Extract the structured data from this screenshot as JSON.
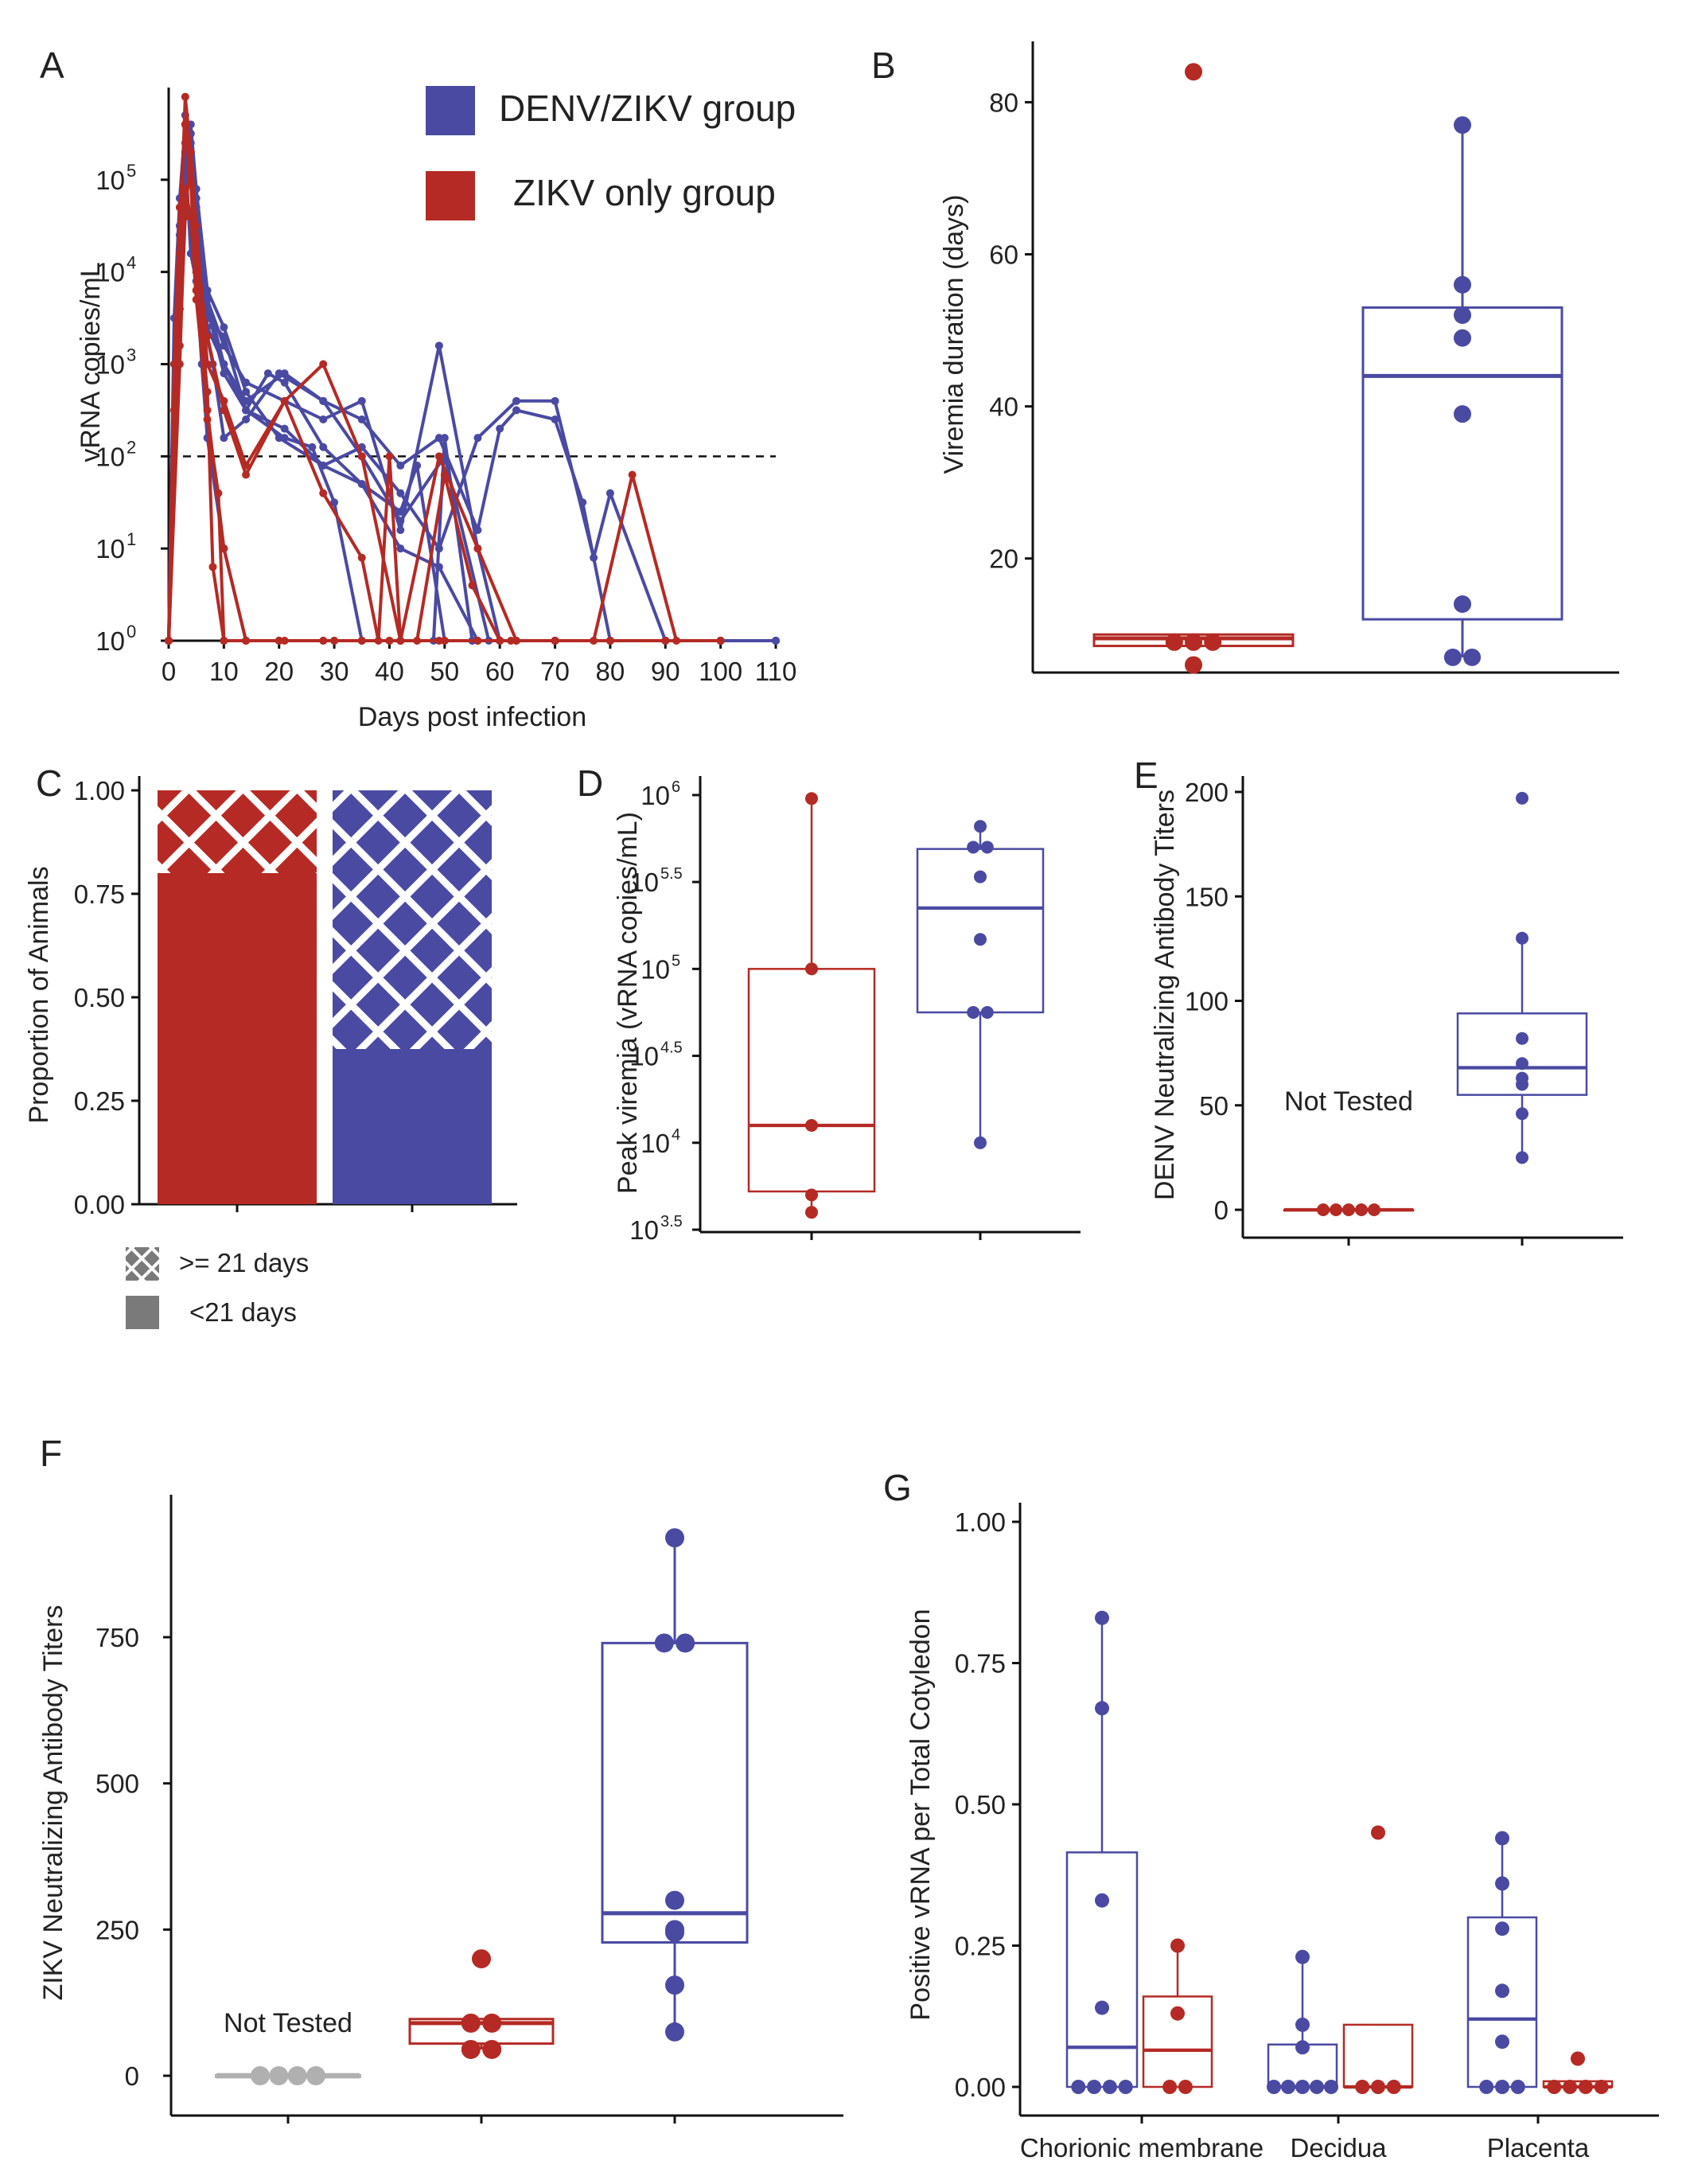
{
  "colors": {
    "denv_zikv": "#4a4aa3",
    "zikv_only": "#b52a24",
    "not_tested": "#b0b0b0",
    "axis": "#111111"
  },
  "legend": {
    "denv_zikv": "DENV/ZIKV group",
    "zikv_only": "ZIKV only group",
    "hatch_label": ">= 21 days",
    "solid_label": "<21 days"
  },
  "chart_data": [
    {
      "panel": "A",
      "type": "line",
      "xlabel": "Days post infection",
      "ylabel": "vRNA copies/mL",
      "yscale": "log10",
      "xlim": [
        0,
        110
      ],
      "ylim_exp": [
        0,
        6
      ],
      "xticks": [
        "0",
        "10",
        "20",
        "30",
        "40",
        "50",
        "60",
        "70",
        "80",
        "90",
        "100",
        "110"
      ],
      "ytick_exps": [
        "0",
        "1",
        "2",
        "3",
        "4",
        "5"
      ],
      "ytick_base": "10",
      "threshold_log": 2,
      "series_note": "values are log10 vRNA copies/mL; -1 marks undetectable (plotted on baseline)",
      "series": [
        {
          "group": "DENV/ZIKV",
          "x": [
            0,
            1,
            2,
            3,
            4,
            5,
            6,
            7,
            10,
            14,
            20,
            28,
            35,
            42,
            50,
            56
          ],
          "y": [
            0,
            3.5,
            4.8,
            5.6,
            5.0,
            3.9,
            3.0,
            2.2,
            1.0,
            0,
            0,
            0,
            0,
            0,
            0,
            0
          ]
        },
        {
          "group": "DENV/ZIKV",
          "x": [
            0,
            2,
            3,
            4,
            5,
            7,
            10,
            14,
            21,
            28,
            35,
            42,
            49,
            56,
            60,
            63,
            70,
            75,
            80,
            90,
            100
          ],
          "y": [
            0,
            4.2,
            5.4,
            5.2,
            4.5,
            3.4,
            3.0,
            2.6,
            2.9,
            2.6,
            2.4,
            1.9,
            2.2,
            1.2,
            2.3,
            2.5,
            2.4,
            1.5,
            0,
            0,
            0
          ]
        },
        {
          "group": "DENV/ZIKV",
          "x": [
            0,
            2,
            3,
            4,
            5,
            7,
            10,
            14,
            21,
            28,
            35,
            42,
            49,
            56,
            63,
            70,
            77,
            80,
            90,
            100,
            110
          ],
          "y": [
            0,
            4.4,
            5.7,
            5.5,
            4.6,
            3.6,
            2.9,
            2.5,
            2.3,
            1.9,
            2.1,
            1.6,
            1.0,
            2.2,
            2.6,
            2.6,
            0.9,
            1.6,
            0,
            0,
            0
          ]
        },
        {
          "group": "DENV/ZIKV",
          "x": [
            0,
            2,
            3,
            4,
            5,
            7,
            10,
            14,
            21,
            28,
            35,
            42,
            49,
            56,
            60,
            70,
            80,
            90,
            100,
            110
          ],
          "y": [
            0,
            3.8,
            5.3,
            5.5,
            4.8,
            3.7,
            3.2,
            2.8,
            2.6,
            2.4,
            2.6,
            1.2,
            3.2,
            1.0,
            0,
            0,
            0,
            0,
            0,
            0
          ]
        },
        {
          "group": "DENV/ZIKV",
          "x": [
            0,
            2,
            3,
            4,
            5,
            7,
            10,
            14,
            18,
            21,
            28,
            35,
            42,
            49,
            56,
            60,
            70,
            80,
            90,
            100,
            110
          ],
          "y": [
            0,
            4.0,
            5.1,
            5.3,
            4.3,
            3.5,
            3.3,
            2.5,
            2.9,
            2.8,
            2.1,
            1.7,
            1.0,
            0.8,
            0,
            0,
            0,
            0,
            0,
            0,
            0
          ]
        },
        {
          "group": "DENV/ZIKV",
          "x": [
            0,
            1,
            2,
            3,
            4,
            6,
            8,
            10,
            14,
            20,
            28,
            35,
            42,
            50,
            58,
            60,
            70,
            80,
            90,
            100,
            110
          ],
          "y": [
            0,
            3.0,
            4.5,
            5.3,
            4.2,
            3.6,
            3.0,
            2.2,
            2.4,
            2.9,
            2.6,
            2.0,
            1.3,
            2.0,
            0,
            0,
            0,
            0,
            0,
            0,
            0
          ]
        },
        {
          "group": "DENV/ZIKV",
          "x": [
            0,
            2,
            3,
            4,
            5,
            7,
            10,
            14,
            20,
            28,
            35,
            42,
            45,
            50,
            55,
            60,
            70,
            80,
            90,
            100,
            110
          ],
          "y": [
            0,
            3.6,
            5.0,
            5.6,
            4.9,
            3.8,
            3.4,
            2.7,
            2.2,
            1.9,
            1.7,
            1.4,
            1.9,
            0,
            0,
            0,
            0,
            0,
            0,
            0,
            0
          ]
        },
        {
          "group": "DENV/ZIKV",
          "x": [
            0,
            2,
            3,
            4,
            5,
            7,
            10,
            14,
            21,
            26,
            30,
            35,
            42,
            48,
            50,
            55,
            60,
            70,
            80,
            90,
            100
          ],
          "y": [
            0,
            3.8,
            5.0,
            5.4,
            4.7,
            3.7,
            3.0,
            2.5,
            2.2,
            2.1,
            1.5,
            0,
            0,
            0,
            2.2,
            0,
            0,
            0,
            0,
            0,
            0
          ]
        },
        {
          "group": "ZIKV only",
          "x": [
            0,
            1,
            2,
            3,
            4,
            5,
            7,
            8,
            10,
            20,
            30,
            40,
            50,
            60
          ],
          "y": [
            0,
            2.5,
            4.2,
            5.9,
            5.3,
            4.0,
            2.7,
            0.8,
            0,
            0,
            0,
            0,
            0,
            0
          ]
        },
        {
          "group": "ZIKV only",
          "x": [
            0,
            1,
            2,
            3,
            4,
            5,
            7,
            9,
            10,
            14,
            20,
            30,
            40,
            50,
            60,
            70,
            80,
            90
          ],
          "y": [
            0,
            3.0,
            4.7,
            5.6,
            5.0,
            3.8,
            2.4,
            1.6,
            0,
            0,
            0,
            0,
            0,
            0,
            0,
            0,
            0,
            0
          ]
        },
        {
          "group": "ZIKV only",
          "x": [
            0,
            2,
            3,
            4,
            5,
            7,
            10,
            14,
            21,
            28,
            35,
            42,
            49,
            56,
            63,
            70,
            77,
            84,
            92,
            100
          ],
          "y": [
            0,
            3.6,
            4.9,
            4.6,
            3.7,
            2.5,
            1.0,
            0,
            0,
            0,
            0,
            0,
            0,
            0,
            0,
            0,
            0,
            1.8,
            0,
            0
          ]
        },
        {
          "group": "ZIKV only",
          "x": [
            0,
            2,
            3,
            4,
            5,
            7,
            10,
            14,
            21,
            28,
            35,
            42,
            49,
            56,
            63,
            70,
            80,
            90,
            100
          ],
          "y": [
            0,
            3.2,
            4.6,
            5.3,
            4.5,
            3.0,
            2.6,
            1.9,
            2.6,
            3.0,
            2.0,
            0,
            2.0,
            1.0,
            0,
            0,
            0,
            0,
            0
          ]
        },
        {
          "group": "ZIKV only",
          "x": [
            0,
            2,
            3,
            4,
            5,
            7,
            10,
            14,
            21,
            28,
            35,
            38,
            40,
            42,
            45,
            50,
            55,
            60,
            62,
            70,
            80
          ],
          "y": [
            0,
            3.0,
            4.8,
            5.1,
            4.2,
            3.3,
            2.5,
            1.8,
            2.6,
            1.6,
            0.9,
            0,
            2.0,
            0,
            0,
            1.8,
            0.6,
            0,
            0,
            0,
            0
          ]
        }
      ]
    },
    {
      "panel": "B",
      "type": "box",
      "ylabel": "Viremia duration (days)",
      "ylim": [
        5,
        88
      ],
      "yticks": [
        20,
        40,
        60,
        80
      ],
      "groups": [
        {
          "group": "ZIKV only",
          "q1": 8.5,
          "median": 9.5,
          "q3": 10,
          "whisker_low": 8.5,
          "whisker_high": 10,
          "points": [
            6,
            9,
            9,
            9,
            84
          ]
        },
        {
          "group": "DENV/ZIKV",
          "q1": 12,
          "median": 44,
          "q3": 53,
          "whisker_low": 7,
          "whisker_high": 77,
          "points": [
            7,
            7,
            14,
            39,
            49,
            52,
            56,
            77
          ]
        }
      ]
    },
    {
      "panel": "C",
      "type": "bar",
      "ylabel": "Proportion of Animals",
      "ylim": [
        0,
        1
      ],
      "yticks": [
        "0.00",
        "0.25",
        "0.50",
        "0.75",
        "1.00"
      ],
      "categories": [
        "ZIKV only",
        "DENV/ZIKV"
      ],
      "series": [
        {
          "name": "<21 days",
          "values": [
            0.8,
            0.375
          ]
        },
        {
          "name": ">= 21 days",
          "values": [
            0.2,
            0.625
          ]
        }
      ]
    },
    {
      "panel": "D",
      "type": "box",
      "ylabel": "Peak viremia (vRNA copies/mL)",
      "yscale": "log10",
      "ylim_exp": [
        3.5,
        6.05
      ],
      "ytick_base": "10",
      "ytick_exps": [
        "3.5",
        "4",
        "4.5",
        "5",
        "5.5",
        "6"
      ],
      "groups": [
        {
          "group": "ZIKV only",
          "q1": 3.72,
          "median": 4.1,
          "q3": 5.0,
          "whisker_low": 3.6,
          "whisker_high": 5.98,
          "points": [
            3.6,
            3.7,
            4.1,
            5.0,
            5.98
          ]
        },
        {
          "group": "DENV/ZIKV",
          "q1": 4.75,
          "median": 5.35,
          "q3": 5.69,
          "whisker_low": 4.0,
          "whisker_high": 5.82,
          "points": [
            4.0,
            4.75,
            4.75,
            5.17,
            5.53,
            5.7,
            5.7,
            5.82
          ]
        }
      ]
    },
    {
      "panel": "E",
      "type": "box",
      "ylabel": "DENV Neutralizing Antibody Titers",
      "ylim": [
        -12,
        205
      ],
      "yticks": [
        0,
        50,
        100,
        150,
        200
      ],
      "annotation": "Not Tested",
      "groups": [
        {
          "group": "ZIKV only",
          "q1": 0,
          "median": 0,
          "q3": 0,
          "whisker_low": 0,
          "whisker_high": 0,
          "points": [
            0,
            0,
            0,
            0,
            0
          ]
        },
        {
          "group": "DENV/ZIKV",
          "q1": 55,
          "median": 68,
          "q3": 94,
          "whisker_low": 25,
          "whisker_high": 130,
          "points": [
            25,
            46,
            60,
            63,
            70,
            82,
            130,
            197
          ]
        }
      ]
    },
    {
      "panel": "F",
      "type": "box",
      "ylabel": "ZIKV Neutralizing Antibody Titers",
      "ylim": [
        -60,
        990
      ],
      "yticks": [
        0,
        250,
        500,
        750
      ],
      "annotation": "Not Tested",
      "groups": [
        {
          "group": "Not tested",
          "q1": 0,
          "median": 0,
          "q3": 0,
          "whisker_low": 0,
          "whisker_high": 0,
          "points": [
            0,
            0,
            0,
            0
          ]
        },
        {
          "group": "ZIKV only",
          "q1": 55,
          "median": 90,
          "q3": 97,
          "whisker_low": 45,
          "whisker_high": 97,
          "points": [
            45,
            45,
            90,
            90,
            200
          ]
        },
        {
          "group": "DENV/ZIKV",
          "q1": 228,
          "median": 278,
          "q3": 740,
          "whisker_low": 75,
          "whisker_high": 920,
          "points": [
            75,
            155,
            245,
            250,
            300,
            740,
            740,
            920
          ]
        }
      ]
    },
    {
      "panel": "G",
      "type": "box",
      "ylabel": "Positive vRNA per Total Cotyledon",
      "ylim": [
        -0.03,
        1.04
      ],
      "yticks": [
        "0.00",
        "0.25",
        "0.50",
        "0.75",
        "1.00"
      ],
      "categories": [
        "Chorionic membrane",
        "Decidua",
        "Placenta"
      ],
      "groups": [
        {
          "category": "Chorionic membrane",
          "group": "DENV/ZIKV",
          "q1": 0,
          "median": 0.07,
          "q3": 0.415,
          "whisker_low": 0,
          "whisker_high": 0.83,
          "points": [
            0,
            0,
            0,
            0,
            0.14,
            0.33,
            0.67,
            0.83
          ]
        },
        {
          "category": "Chorionic membrane",
          "group": "ZIKV only",
          "q1": 0,
          "median": 0.065,
          "q3": 0.16,
          "whisker_low": 0,
          "whisker_high": 0.25,
          "points": [
            0,
            0,
            0.13,
            0.25
          ]
        },
        {
          "category": "Decidua",
          "group": "DENV/ZIKV",
          "q1": 0,
          "median": 0,
          "q3": 0.075,
          "whisker_low": 0,
          "whisker_high": 0.23,
          "points": [
            0,
            0,
            0,
            0,
            0,
            0.07,
            0.11,
            0.23
          ]
        },
        {
          "category": "Decidua",
          "group": "ZIKV only",
          "q1": 0,
          "median": 0,
          "q3": 0.11,
          "whisker_low": 0,
          "whisker_high": 0.11,
          "points": [
            0,
            0,
            0,
            0.45
          ]
        },
        {
          "category": "Placenta",
          "group": "DENV/ZIKV",
          "q1": 0,
          "median": 0.12,
          "q3": 0.3,
          "whisker_low": 0,
          "whisker_high": 0.44,
          "points": [
            0,
            0,
            0,
            0.08,
            0.17,
            0.28,
            0.36,
            0.44
          ]
        },
        {
          "category": "Placenta",
          "group": "ZIKV only",
          "q1": 0,
          "median": 0,
          "q3": 0.01,
          "whisker_low": 0,
          "whisker_high": 0.01,
          "points": [
            0,
            0,
            0,
            0,
            0.05
          ]
        }
      ]
    }
  ]
}
